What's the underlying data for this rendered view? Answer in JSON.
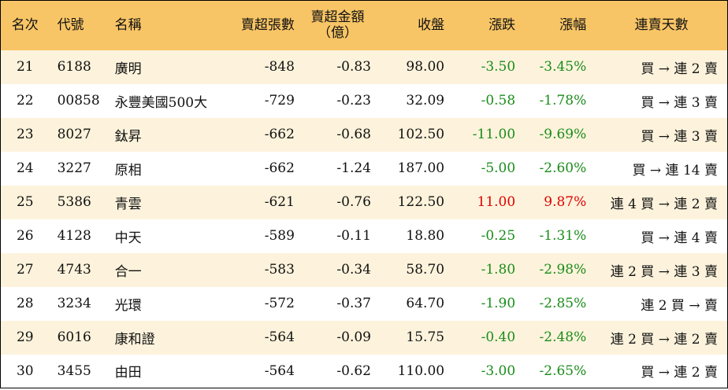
{
  "table": {
    "header": [
      "名次",
      "代號",
      "名稱",
      "賣超張數",
      "賣超金額\n（億）",
      "收盤",
      "漲跌",
      "漲幅",
      "連賣天數"
    ],
    "rows": [
      [
        "21",
        "6188",
        "廣明",
        "-848",
        "-0.83",
        "98.00",
        "-3.50",
        "-3.45%",
        "買 → 連 2 賣"
      ],
      [
        "22",
        "00858",
        "永豐美國500大",
        "-729",
        "-0.23",
        "32.09",
        "-0.58",
        "-1.78%",
        "買 → 連 3 賣"
      ],
      [
        "23",
        "8027",
        "鈦昇",
        "-662",
        "-0.68",
        "102.50",
        "-11.00",
        "-9.69%",
        "買 → 連 3 賣"
      ],
      [
        "24",
        "3227",
        "原相",
        "-662",
        "-1.24",
        "187.00",
        "-5.00",
        "-2.60%",
        "買 → 連 14 賣"
      ],
      [
        "25",
        "5386",
        "青雲",
        "-621",
        "-0.76",
        "122.50",
        "11.00",
        "9.87%",
        "連 4 買 → 連 2 賣"
      ],
      [
        "26",
        "4128",
        "中天",
        "-589",
        "-0.11",
        "18.80",
        "-0.25",
        "-1.31%",
        "買 → 連 4 賣"
      ],
      [
        "27",
        "4743",
        "合一",
        "-583",
        "-0.34",
        "58.70",
        "-1.80",
        "-2.98%",
        "連 2 買 → 連 3 賣"
      ],
      [
        "28",
        "3234",
        "光環",
        "-572",
        "-0.37",
        "64.70",
        "-1.90",
        "-2.85%",
        "連 2 買 → 賣"
      ],
      [
        "29",
        "6016",
        "康和證",
        "-564",
        "-0.09",
        "15.75",
        "-0.40",
        "-2.48%",
        "連 2 買 → 連 2 賣"
      ],
      [
        "30",
        "3455",
        "由田",
        "-564",
        "-0.62",
        "110.00",
        "-3.00",
        "-2.65%",
        "買 → 連 2 賣"
      ]
    ],
    "colors": {
      "up": "#e00000",
      "down": "#1a8c1a"
    }
  }
}
